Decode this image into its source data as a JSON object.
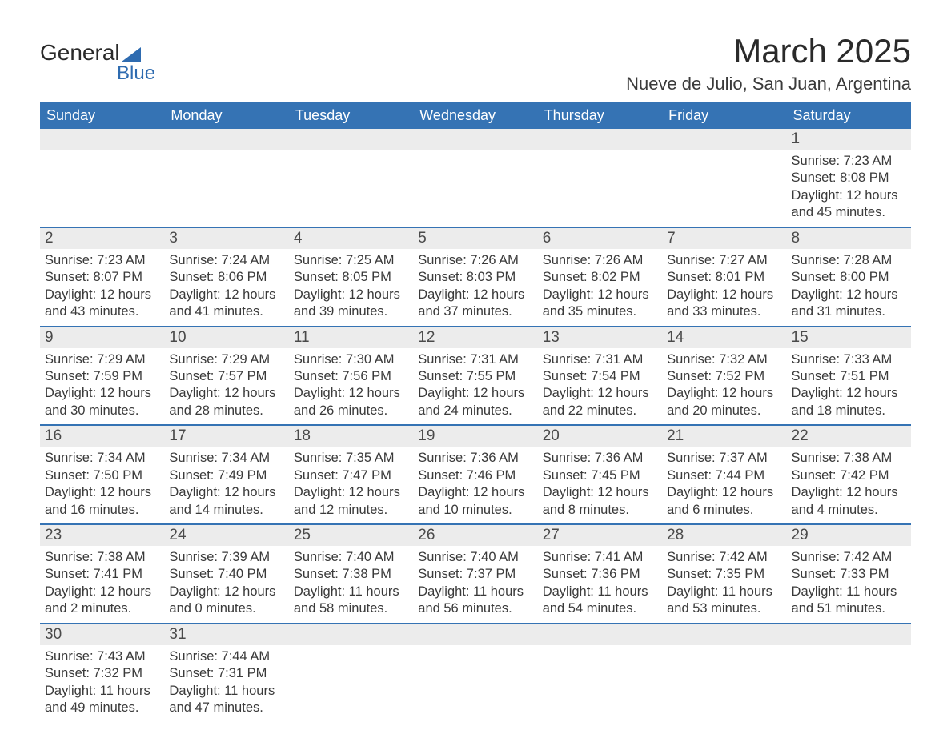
{
  "logo": {
    "line1": "General",
    "line2": "Blue"
  },
  "title": "March 2025",
  "location": "Nueve de Julio, San Juan, Argentina",
  "colors": {
    "header_bg": "#3573b4",
    "header_fg": "#ffffff",
    "daynum_bg": "#ececec",
    "border": "#3573b4",
    "text": "#3a3a3a",
    "logo_accent": "#2e6bb0"
  },
  "day_headers": [
    "Sunday",
    "Monday",
    "Tuesday",
    "Wednesday",
    "Thursday",
    "Friday",
    "Saturday"
  ],
  "weeks": [
    [
      null,
      null,
      null,
      null,
      null,
      null,
      {
        "n": "1",
        "sr": "7:23 AM",
        "ss": "8:08 PM",
        "dl": "12 hours and 45 minutes."
      }
    ],
    [
      {
        "n": "2",
        "sr": "7:23 AM",
        "ss": "8:07 PM",
        "dl": "12 hours and 43 minutes."
      },
      {
        "n": "3",
        "sr": "7:24 AM",
        "ss": "8:06 PM",
        "dl": "12 hours and 41 minutes."
      },
      {
        "n": "4",
        "sr": "7:25 AM",
        "ss": "8:05 PM",
        "dl": "12 hours and 39 minutes."
      },
      {
        "n": "5",
        "sr": "7:26 AM",
        "ss": "8:03 PM",
        "dl": "12 hours and 37 minutes."
      },
      {
        "n": "6",
        "sr": "7:26 AM",
        "ss": "8:02 PM",
        "dl": "12 hours and 35 minutes."
      },
      {
        "n": "7",
        "sr": "7:27 AM",
        "ss": "8:01 PM",
        "dl": "12 hours and 33 minutes."
      },
      {
        "n": "8",
        "sr": "7:28 AM",
        "ss": "8:00 PM",
        "dl": "12 hours and 31 minutes."
      }
    ],
    [
      {
        "n": "9",
        "sr": "7:29 AM",
        "ss": "7:59 PM",
        "dl": "12 hours and 30 minutes."
      },
      {
        "n": "10",
        "sr": "7:29 AM",
        "ss": "7:57 PM",
        "dl": "12 hours and 28 minutes."
      },
      {
        "n": "11",
        "sr": "7:30 AM",
        "ss": "7:56 PM",
        "dl": "12 hours and 26 minutes."
      },
      {
        "n": "12",
        "sr": "7:31 AM",
        "ss": "7:55 PM",
        "dl": "12 hours and 24 minutes."
      },
      {
        "n": "13",
        "sr": "7:31 AM",
        "ss": "7:54 PM",
        "dl": "12 hours and 22 minutes."
      },
      {
        "n": "14",
        "sr": "7:32 AM",
        "ss": "7:52 PM",
        "dl": "12 hours and 20 minutes."
      },
      {
        "n": "15",
        "sr": "7:33 AM",
        "ss": "7:51 PM",
        "dl": "12 hours and 18 minutes."
      }
    ],
    [
      {
        "n": "16",
        "sr": "7:34 AM",
        "ss": "7:50 PM",
        "dl": "12 hours and 16 minutes."
      },
      {
        "n": "17",
        "sr": "7:34 AM",
        "ss": "7:49 PM",
        "dl": "12 hours and 14 minutes."
      },
      {
        "n": "18",
        "sr": "7:35 AM",
        "ss": "7:47 PM",
        "dl": "12 hours and 12 minutes."
      },
      {
        "n": "19",
        "sr": "7:36 AM",
        "ss": "7:46 PM",
        "dl": "12 hours and 10 minutes."
      },
      {
        "n": "20",
        "sr": "7:36 AM",
        "ss": "7:45 PM",
        "dl": "12 hours and 8 minutes."
      },
      {
        "n": "21",
        "sr": "7:37 AM",
        "ss": "7:44 PM",
        "dl": "12 hours and 6 minutes."
      },
      {
        "n": "22",
        "sr": "7:38 AM",
        "ss": "7:42 PM",
        "dl": "12 hours and 4 minutes."
      }
    ],
    [
      {
        "n": "23",
        "sr": "7:38 AM",
        "ss": "7:41 PM",
        "dl": "12 hours and 2 minutes."
      },
      {
        "n": "24",
        "sr": "7:39 AM",
        "ss": "7:40 PM",
        "dl": "12 hours and 0 minutes."
      },
      {
        "n": "25",
        "sr": "7:40 AM",
        "ss": "7:38 PM",
        "dl": "11 hours and 58 minutes."
      },
      {
        "n": "26",
        "sr": "7:40 AM",
        "ss": "7:37 PM",
        "dl": "11 hours and 56 minutes."
      },
      {
        "n": "27",
        "sr": "7:41 AM",
        "ss": "7:36 PM",
        "dl": "11 hours and 54 minutes."
      },
      {
        "n": "28",
        "sr": "7:42 AM",
        "ss": "7:35 PM",
        "dl": "11 hours and 53 minutes."
      },
      {
        "n": "29",
        "sr": "7:42 AM",
        "ss": "7:33 PM",
        "dl": "11 hours and 51 minutes."
      }
    ],
    [
      {
        "n": "30",
        "sr": "7:43 AM",
        "ss": "7:32 PM",
        "dl": "11 hours and 49 minutes."
      },
      {
        "n": "31",
        "sr": "7:44 AM",
        "ss": "7:31 PM",
        "dl": "11 hours and 47 minutes."
      },
      null,
      null,
      null,
      null,
      null
    ]
  ],
  "labels": {
    "sunrise": "Sunrise: ",
    "sunset": "Sunset: ",
    "daylight": "Daylight: "
  }
}
